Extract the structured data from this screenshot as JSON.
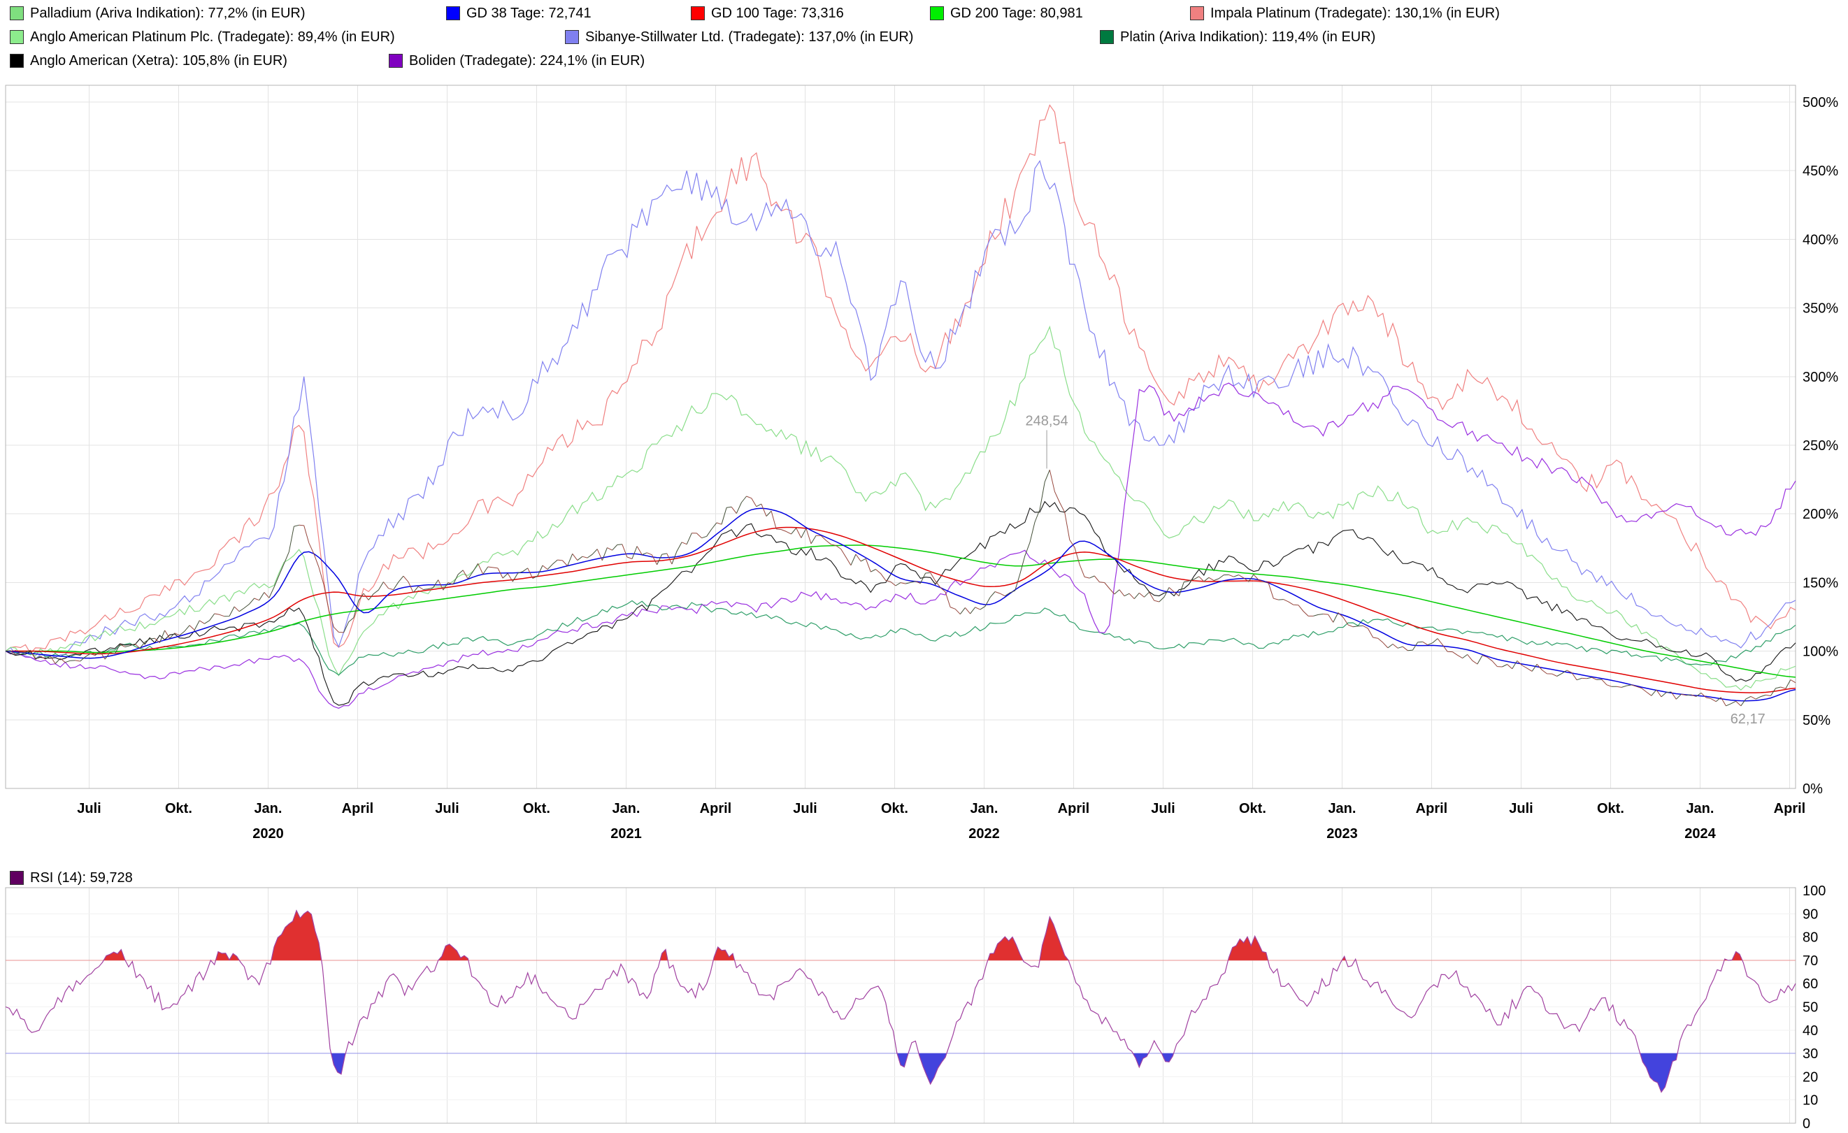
{
  "legend": {
    "rows": [
      [
        {
          "id": "palladium",
          "label": "Palladium (Ariva Indikation): 77,2% (in EUR)",
          "color": "#7fdf7f"
        },
        {
          "id": "gd38",
          "label": "GD 38 Tage: 72,741",
          "color": "#0000ff"
        },
        {
          "id": "gd100",
          "label": "GD 100 Tage: 73,316",
          "color": "#ff0000"
        },
        {
          "id": "gd200",
          "label": "GD 200 Tage: 80,981",
          "color": "#00ee00"
        },
        {
          "id": "impala",
          "label": "Impala Platinum (Tradegate): 130,1% (in EUR)",
          "color": "#f08080"
        }
      ],
      [
        {
          "id": "anglo_platinum",
          "label": "Anglo American Platinum Plc. (Tradegate): 89,4% (in EUR)",
          "color": "#8cec8c"
        },
        {
          "id": "sibanye",
          "label": "Sibanye-Stillwater Ltd. (Tradegate): 137,0% (in EUR)",
          "color": "#8080f0"
        },
        {
          "id": "platin",
          "label": "Platin (Ariva Indikation): 119,4% (in EUR)",
          "color": "#007a40"
        }
      ],
      [
        {
          "id": "anglo_american",
          "label": "Anglo American (Xetra): 105,8% (in EUR)",
          "color": "#000000"
        },
        {
          "id": "boliden",
          "label": "Boliden (Tradegate): 224,1% (in EUR)",
          "color": "#8000c0"
        }
      ]
    ]
  },
  "rsi_legend": {
    "label": "RSI (14): 59,728",
    "color": "#600060"
  },
  "chart_data": [
    {
      "type": "line",
      "title": "",
      "xlabel": "",
      "ylabel": "",
      "y_axis_side": "right",
      "x_start": "2019-04",
      "x_total_months": 60,
      "x_first_tick_month": 2.8,
      "x_tick_step_months": 3,
      "x_ticks": [
        {
          "label": "Juli"
        },
        {
          "label": "Okt."
        },
        {
          "label": "Jan.",
          "year": "2020"
        },
        {
          "label": "April"
        },
        {
          "label": "Juli"
        },
        {
          "label": "Okt."
        },
        {
          "label": "Jan.",
          "year": "2021"
        },
        {
          "label": "April"
        },
        {
          "label": "Juli"
        },
        {
          "label": "Okt."
        },
        {
          "label": "Jan.",
          "year": "2022"
        },
        {
          "label": "April"
        },
        {
          "label": "Juli"
        },
        {
          "label": "Okt."
        },
        {
          "label": "Jan.",
          "year": "2023"
        },
        {
          "label": "April"
        },
        {
          "label": "Juli"
        },
        {
          "label": "Okt."
        },
        {
          "label": "Jan.",
          "year": "2024"
        },
        {
          "label": "April"
        }
      ],
      "ylim": [
        0,
        500
      ],
      "y_tick_step": 50,
      "y_tick_labels": [
        "0%",
        "50%",
        "100%",
        "150%",
        "200%",
        "250%",
        "300%",
        "350%",
        "400%",
        "450%",
        "500%"
      ],
      "grid": true,
      "legend_position": "top-left",
      "series": [
        {
          "id": "impala",
          "name": "Impala Platinum (Tradegate)",
          "color": "#f08080",
          "width": 1.2,
          "jitter": 5,
          "values": [
            100,
            103,
            110,
            120,
            130,
            139,
            152,
            168,
            188,
            215,
            258,
            105,
            142,
            168,
            172,
            188,
            205,
            210,
            238,
            258,
            272,
            305,
            345,
            395,
            430,
            455,
            420,
            390,
            345,
            305,
            330,
            310,
            345,
            400,
            440,
            487,
            430,
            380,
            320,
            283,
            300,
            312,
            295,
            312,
            330,
            352,
            345,
            312,
            282,
            300,
            288,
            268,
            242,
            222,
            232,
            212,
            192,
            165,
            138,
            118,
            130
          ]
        },
        {
          "id": "sibanye",
          "name": "Sibanye-Stillwater Ltd. (Tradegate)",
          "color": "#8080f0",
          "width": 1.2,
          "jitter": 5,
          "values": [
            100,
            96,
            101,
            111,
            119,
            126,
            136,
            152,
            172,
            195,
            298,
            112,
            162,
            195,
            215,
            252,
            282,
            272,
            302,
            332,
            372,
            402,
            425,
            442,
            430,
            412,
            425,
            402,
            382,
            302,
            362,
            312,
            342,
            392,
            420,
            445,
            362,
            302,
            262,
            252,
            282,
            302,
            292,
            302,
            312,
            315,
            295,
            272,
            252,
            235,
            215,
            195,
            175,
            158,
            145,
            132,
            122,
            112,
            105,
            118,
            137
          ]
        },
        {
          "id": "anglo_platinum",
          "name": "Anglo American Platinum Plc. (Tradegate)",
          "color": "#8ade8a",
          "width": 1.2,
          "jitter": 4,
          "values": [
            100,
            99,
            103,
            110,
            116,
            121,
            129,
            136,
            143,
            152,
            168,
            86,
            112,
            132,
            142,
            152,
            166,
            171,
            186,
            202,
            216,
            232,
            252,
            272,
            288,
            272,
            256,
            246,
            231,
            211,
            226,
            206,
            221,
            252,
            290,
            335,
            270,
            238,
            208,
            186,
            196,
            206,
            196,
            206,
            196,
            206,
            216,
            206,
            186,
            196,
            186,
            171,
            151,
            136,
            126,
            111,
            96,
            82,
            74,
            80,
            89
          ]
        },
        {
          "id": "platin",
          "name": "Platin (Ariva Indikation)",
          "color": "#2e9e68",
          "width": 1.2,
          "jitter": 2.5,
          "values": [
            100,
            98,
            97,
            99,
            104,
            102,
            105,
            108,
            112,
            116,
            118,
            84,
            96,
            98,
            101,
            106,
            109,
            106,
            113,
            121,
            129,
            136,
            131,
            133,
            129,
            126,
            123,
            119,
            113,
            109,
            116,
            109,
            113,
            119,
            126,
            130,
            118,
            112,
            106,
            103,
            106,
            109,
            103,
            109,
            113,
            119,
            123,
            119,
            116,
            113,
            111,
            106,
            106,
            101,
            99,
            96,
            93,
            91,
            96,
            106,
            119
          ]
        },
        {
          "id": "boliden",
          "name": "Boliden (Tradegate)",
          "color": "#9a30e0",
          "width": 1.2,
          "jitter": 3,
          "values": [
            100,
            95,
            90,
            88,
            85,
            80,
            85,
            88,
            92,
            95,
            90,
            58,
            70,
            79,
            86,
            93,
            99,
            101,
            109,
            116,
            121,
            126,
            131,
            129,
            136,
            131,
            136,
            141,
            136,
            131,
            141,
            136,
            151,
            161,
            171,
            161,
            146,
            121,
            286,
            271,
            281,
            291,
            286,
            271,
            261,
            271,
            281,
            291,
            271,
            261,
            251,
            241,
            231,
            221,
            201,
            196,
            206,
            196,
            186,
            191,
            224
          ]
        },
        {
          "id": "anglo_american",
          "name": "Anglo American (Xetra)",
          "color": "#141414",
          "width": 1.1,
          "jitter": 3.5,
          "values": [
            100,
            97,
            95,
            100,
            105,
            108,
            112,
            115,
            118,
            122,
            126,
            62,
            76,
            81,
            83,
            86,
            89,
            86,
            96,
            106,
            116,
            126,
            141,
            161,
            181,
            190,
            176,
            171,
            158,
            146,
            161,
            151,
            166,
            181,
            196,
            205,
            200,
            172,
            152,
            141,
            156,
            166,
            161,
            171,
            176,
            185,
            176,
            166,
            156,
            146,
            151,
            141,
            131,
            121,
            111,
            106,
            99,
            96,
            78,
            88,
            106
          ]
        },
        {
          "id": "gd200",
          "name": "GD 200 Tage",
          "color": "#00cc00",
          "width": 1.5,
          "jitter": 0,
          "values": [
            100,
            100,
            100,
            99,
            100,
            101,
            103,
            106,
            110,
            115,
            122,
            127,
            130,
            133,
            136,
            139,
            142,
            145,
            147,
            150,
            153,
            156,
            159,
            162,
            166,
            170,
            173,
            176,
            177,
            177,
            175,
            172,
            168,
            164,
            162,
            164,
            166,
            167,
            166,
            163,
            160,
            158,
            156,
            154,
            151,
            148,
            144,
            140,
            135,
            130,
            125,
            120,
            115,
            110,
            105,
            100,
            96,
            92,
            88,
            84,
            81
          ]
        },
        {
          "id": "gd100",
          "name": "GD 100 Tage",
          "color": "#e00000",
          "width": 1.5,
          "jitter": 0,
          "values": [
            100,
            100,
            99,
            98,
            99,
            102,
            106,
            111,
            117,
            125,
            138,
            143,
            140,
            141,
            144,
            147,
            150,
            152,
            155,
            158,
            162,
            165,
            166,
            170,
            178,
            186,
            190,
            189,
            184,
            176,
            167,
            158,
            151,
            147,
            151,
            165,
            172,
            169,
            161,
            154,
            151,
            151,
            151,
            148,
            143,
            136,
            128,
            120,
            113,
            108,
            102,
            97,
            92,
            88,
            84,
            80,
            76,
            72,
            70,
            70,
            73
          ]
        },
        {
          "id": "gd38",
          "name": "GD 38 Tage",
          "color": "#0000e0",
          "width": 1.5,
          "jitter": 0,
          "values": [
            100,
            98,
            96,
            95,
            99,
            106,
            112,
            119,
            127,
            140,
            172,
            157,
            128,
            144,
            148,
            149,
            156,
            157,
            158,
            163,
            168,
            171,
            168,
            172,
            188,
            203,
            201,
            188,
            178,
            166,
            153,
            149,
            140,
            134,
            147,
            160,
            180,
            170,
            152,
            143,
            146,
            152,
            152,
            143,
            132,
            125,
            115,
            105,
            104,
            101,
            94,
            90,
            86,
            82,
            78,
            73,
            69,
            67,
            64,
            65,
            72
          ]
        },
        {
          "id": "palladium",
          "name": "Palladium (Ariva Indikation)",
          "style": "updown",
          "color_up": "#445038",
          "color_down": "#96463c",
          "width": 1,
          "jitter": 5,
          "values": [
            100,
            97,
            94,
            96,
            103,
            109,
            115,
            123,
            132,
            148,
            196,
            118,
            138,
            150,
            146,
            152,
            160,
            155,
            160,
            166,
            170,
            172,
            165,
            180,
            196,
            210,
            192,
            184,
            172,
            160,
            146,
            152,
            128,
            140,
            155,
            230,
            165,
            148,
            138,
            142,
            150,
            154,
            150,
            136,
            128,
            122,
            108,
            102,
            106,
            96,
            92,
            88,
            85,
            80,
            76,
            70,
            68,
            66,
            62,
            68,
            77
          ]
        }
      ],
      "annotations": [
        {
          "id": "palladium-max",
          "text": "248,54",
          "month": 34.9,
          "value": 268,
          "marker_from": 261,
          "marker_to": 233
        },
        {
          "id": "palladium-min",
          "text": "62,17",
          "month": 58.4,
          "value": 51
        }
      ]
    },
    {
      "type": "line",
      "title": "RSI (14)",
      "current_value": "59,728",
      "ylim": [
        0,
        100
      ],
      "y_tick_step": 10,
      "overbought_level": 70,
      "oversold_level": 30,
      "line_color": "#a040a0",
      "overbought_fill": "#e03030",
      "oversold_fill": "#4343dd",
      "level_line_70_color": "#e89090",
      "level_line_30_color": "#9090e8",
      "x_points_per_month": 2,
      "values": [
        50,
        45,
        40,
        47,
        55,
        62,
        68,
        73,
        71,
        63,
        55,
        49,
        55,
        62,
        70,
        72,
        66,
        60,
        74,
        85,
        91,
        78,
        24,
        32,
        45,
        55,
        62,
        57,
        63,
        70,
        76,
        68,
        58,
        52,
        57,
        63,
        58,
        52,
        47,
        53,
        60,
        66,
        61,
        55,
        72,
        64,
        56,
        62,
        75,
        68,
        60,
        54,
        59,
        65,
        60,
        53,
        47,
        52,
        58,
        52,
        26,
        33,
        18,
        30,
        45,
        55,
        72,
        80,
        74,
        66,
        86,
        73,
        58,
        48,
        42,
        36,
        27,
        34,
        28,
        40,
        52,
        60,
        70,
        80,
        76,
        66,
        58,
        52,
        58,
        64,
        70,
        64,
        58,
        52,
        46,
        52,
        60,
        65,
        58,
        50,
        44,
        50,
        57,
        52,
        46,
        40,
        46,
        52,
        46,
        38,
        24,
        15,
        30,
        44,
        56,
        66,
        73,
        63,
        52,
        56,
        60
      ]
    }
  ]
}
